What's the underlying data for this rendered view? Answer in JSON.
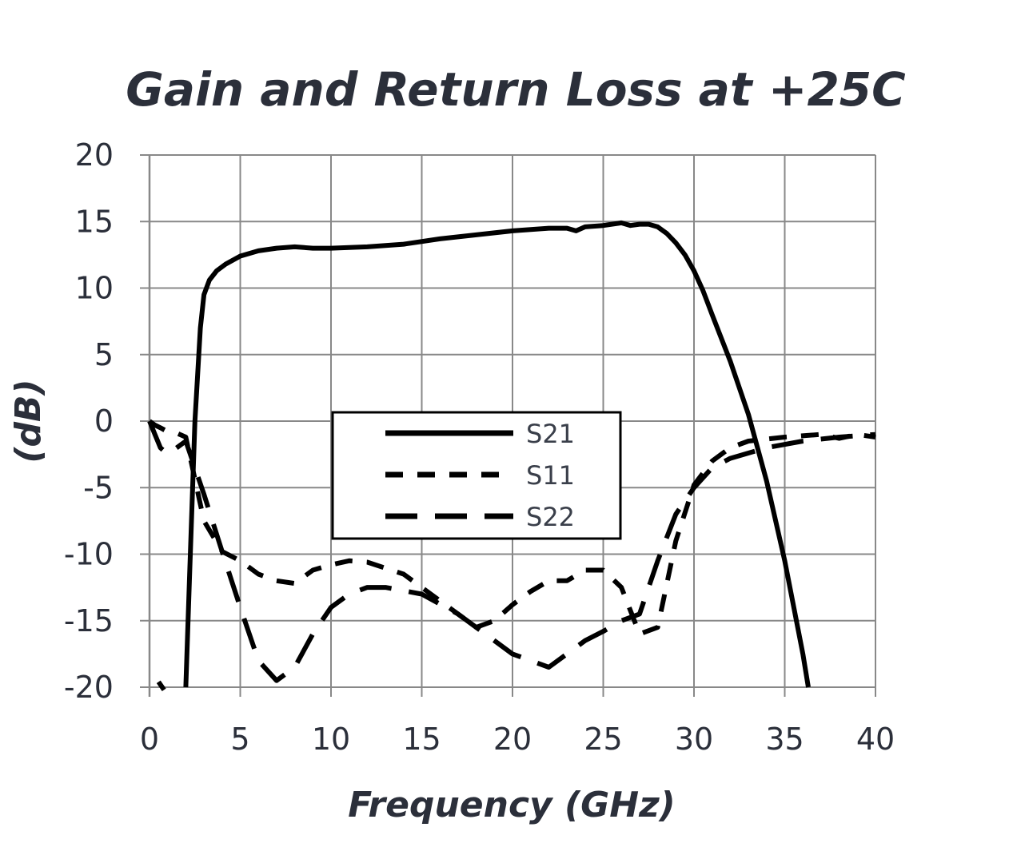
{
  "chart_data": {
    "type": "line",
    "title": "Gain and Return Loss at +25C",
    "xlabel": "Frequency (GHz)",
    "ylabel": "(dB)",
    "xlim": [
      0,
      40
    ],
    "ylim": [
      -20,
      20
    ],
    "x_ticks": [
      "0",
      "5",
      "10",
      "15",
      "20",
      "25",
      "30",
      "35",
      "40"
    ],
    "y_ticks": [
      "20",
      "15",
      "10",
      "5",
      "0",
      "-5",
      "-10",
      "-15",
      "-20"
    ],
    "grid": true,
    "legend_position": "center",
    "series": [
      {
        "name": "S21",
        "style": "solid",
        "color": "#000000",
        "x": [
          2.0,
          2.2,
          2.5,
          2.8,
          3.0,
          3.3,
          3.7,
          4.2,
          5,
          6,
          7,
          8,
          9,
          10,
          12,
          14,
          16,
          18,
          20,
          22,
          23,
          23.5,
          24,
          25,
          26,
          26.5,
          27,
          27.5,
          28,
          28.5,
          29,
          29.5,
          30,
          30.5,
          31,
          32,
          33,
          34,
          35,
          36,
          36.3
        ],
        "y": [
          -20,
          -12,
          0,
          7,
          9.5,
          10.6,
          11.3,
          11.8,
          12.4,
          12.8,
          13.0,
          13.1,
          13.0,
          13.0,
          13.1,
          13.3,
          13.7,
          14.0,
          14.3,
          14.5,
          14.5,
          14.3,
          14.6,
          14.7,
          14.9,
          14.7,
          14.8,
          14.8,
          14.6,
          14.1,
          13.4,
          12.5,
          11.3,
          9.8,
          8.0,
          4.5,
          0.5,
          -4.5,
          -10.5,
          -17.5,
          -20
        ]
      },
      {
        "name": "S11",
        "style": "dashed",
        "color": "#000000",
        "x": [
          0.5,
          0.6,
          0.7,
          0.8,
          null,
          0,
          0.3,
          0.6,
          1.0,
          1.5,
          2.0,
          3.0,
          4.0,
          5.0,
          6.0,
          7.0,
          8.0,
          9.0,
          10.0,
          11.0,
          12.0,
          14.0,
          16.0,
          18.0,
          19.0,
          20.0,
          21.0,
          22.0,
          23.0,
          24.0,
          25.0,
          26.0,
          27.0,
          28.0,
          29.0,
          30.0,
          31.0,
          32.0,
          33.0,
          35.0,
          37.0,
          38.0,
          39.0,
          40.0
        ],
        "y": [
          -19.6,
          -19.8,
          -20,
          -20.2,
          null,
          0,
          -0.3,
          -0.5,
          -0.8,
          -0.9,
          -1.2,
          -7.5,
          -9.8,
          -10.5,
          -11.5,
          -12.0,
          -12.2,
          -11.2,
          -10.8,
          -10.5,
          -10.6,
          -11.5,
          -13.5,
          -15.5,
          -15.0,
          -13.8,
          -12.8,
          -12.0,
          -12.0,
          -11.2,
          -11.2,
          -12.5,
          -16.0,
          -15.5,
          -9.0,
          -4.8,
          -3.0,
          -2.0,
          -1.5,
          -1.2,
          -1.0,
          -1.3,
          -1.0,
          -1.2
        ]
      },
      {
        "name": "S22",
        "style": "longdash",
        "color": "#000000",
        "x": [
          0.0,
          0.3,
          0.6,
          1.0,
          1.5,
          2.0,
          3.0,
          4.0,
          5.0,
          6.0,
          7.0,
          8.0,
          9.0,
          10.0,
          11.0,
          12.0,
          13.0,
          15.0,
          17.0,
          19.0,
          20.0,
          21.0,
          22.0,
          23.0,
          24.0,
          25.0,
          26.0,
          27.0,
          28.0,
          29.0,
          30.0,
          31.0,
          32.0,
          34.0,
          36.0,
          38.0,
          40.0
        ],
        "y": [
          0,
          -1.0,
          -2.0,
          -2.5,
          -2.0,
          -1.5,
          -5.5,
          -9.8,
          -14.0,
          -18.0,
          -19.5,
          -18.5,
          -16.0,
          -14.0,
          -13.0,
          -12.5,
          -12.5,
          -13.0,
          -14.5,
          -16.5,
          -17.5,
          -18.0,
          -18.5,
          -17.5,
          -16.5,
          -15.8,
          -15.0,
          -14.5,
          -10.5,
          -7.0,
          -5.0,
          -3.5,
          -2.8,
          -2.0,
          -1.5,
          -1.2,
          -1.0
        ]
      }
    ]
  }
}
